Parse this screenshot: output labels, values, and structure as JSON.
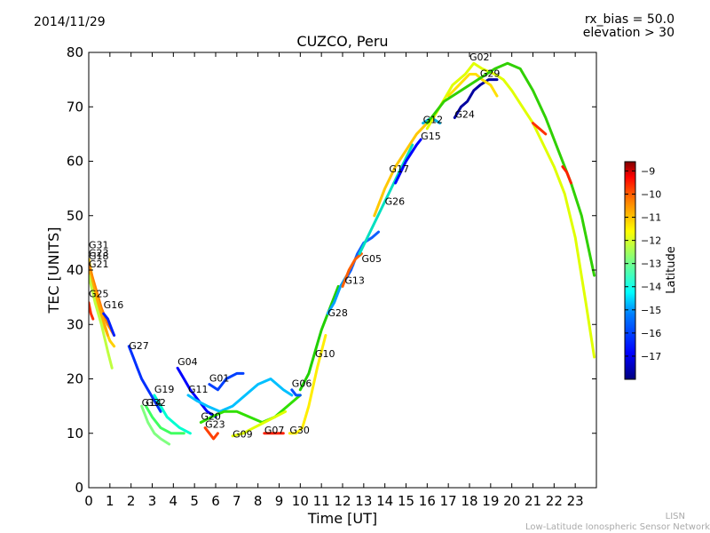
{
  "header": {
    "date": "2014/11/29",
    "rx_bias": "rx_bias = 50.0",
    "elevation": "elevation > 30"
  },
  "footer": {
    "line1": "LISN",
    "line2": "Low-Latitude Ionospheric Sensor Network"
  },
  "chart_data": {
    "type": "scatter",
    "title": "CUZCO, Peru",
    "xlabel": "Time [UT]",
    "ylabel": "TEC [UNITS]",
    "xlim": [
      0,
      24
    ],
    "ylim": [
      0,
      80
    ],
    "xticks": [
      "0",
      "1",
      "2",
      "3",
      "4",
      "5",
      "6",
      "7",
      "8",
      "9",
      "10",
      "11",
      "12",
      "13",
      "14",
      "15",
      "16",
      "17",
      "18",
      "19",
      "20",
      "21",
      "22",
      "23"
    ],
    "yticks": [
      "0",
      "10",
      "20",
      "30",
      "40",
      "50",
      "60",
      "70",
      "80"
    ],
    "colorbar": {
      "label": "Latitude",
      "range": [
        -18,
        -8.6
      ],
      "ticks": [
        "−9",
        "−10",
        "−11",
        "−12",
        "−13",
        "−14",
        "−15",
        "−16",
        "−17"
      ],
      "colormap": [
        "#00007f",
        "#0000ff",
        "#007fff",
        "#00ffff",
        "#7fff7f",
        "#ffff00",
        "#ff7f00",
        "#ff0000",
        "#7f0000"
      ]
    },
    "series": [
      {
        "name": "G31",
        "label_at": [
          0.0,
          44.0
        ],
        "color": "#ffd000",
        "points": [
          [
            0.0,
            42
          ],
          [
            0.2,
            38
          ],
          [
            0.4,
            34
          ],
          [
            0.6,
            31
          ],
          [
            0.8,
            29
          ],
          [
            1.0,
            27
          ],
          [
            1.2,
            26
          ]
        ]
      },
      {
        "name": "G23",
        "label_at": [
          0.0,
          42.5
        ],
        "color": "#ff8000",
        "points": [
          [
            0.0,
            41
          ],
          [
            0.3,
            37
          ],
          [
            0.6,
            33
          ],
          [
            0.9,
            30
          ],
          [
            1.2,
            28
          ]
        ]
      },
      {
        "name": "G18",
        "label_at": [
          0.0,
          42.0
        ],
        "color": "#ffaa00",
        "points": [
          [
            0.0,
            40
          ],
          [
            0.3,
            36
          ],
          [
            0.6,
            32
          ],
          [
            0.9,
            28
          ]
        ]
      },
      {
        "name": "G21",
        "label_at": [
          0.0,
          40.5
        ],
        "color": "#bfff3f",
        "points": [
          [
            0.0,
            39
          ],
          [
            0.3,
            34
          ],
          [
            0.6,
            30
          ],
          [
            0.9,
            25
          ],
          [
            1.1,
            22
          ]
        ]
      },
      {
        "name": "G25",
        "label_at": [
          0.0,
          35.0
        ],
        "color": "#ff3000",
        "points": [
          [
            0.0,
            34
          ],
          [
            0.1,
            32
          ],
          [
            0.2,
            31
          ]
        ]
      },
      {
        "name": "G16",
        "label_at": [
          0.7,
          33.0
        ],
        "color": "#0020ff",
        "points": [
          [
            0.7,
            32
          ],
          [
            0.9,
            31
          ],
          [
            1.1,
            29
          ],
          [
            1.2,
            28
          ]
        ]
      },
      {
        "name": "G27",
        "label_at": [
          1.9,
          25.5
        ],
        "color": "#0030ff",
        "points": [
          [
            1.9,
            26
          ],
          [
            2.1,
            24
          ],
          [
            2.3,
            22
          ],
          [
            2.5,
            20
          ],
          [
            2.8,
            18
          ],
          [
            3.1,
            16
          ],
          [
            3.4,
            14
          ]
        ]
      },
      {
        "name": "G04",
        "label_at": [
          4.2,
          22.5
        ],
        "color": "#0000ff",
        "points": [
          [
            4.2,
            22
          ],
          [
            4.5,
            20
          ],
          [
            4.8,
            18
          ],
          [
            5.2,
            16
          ],
          [
            5.6,
            14
          ],
          [
            6.0,
            13
          ]
        ]
      },
      {
        "name": "G01",
        "label_at": [
          5.7,
          19.5
        ],
        "color": "#0040ff",
        "points": [
          [
            5.7,
            19
          ],
          [
            6.1,
            18
          ],
          [
            6.5,
            20
          ],
          [
            7.0,
            21
          ],
          [
            7.3,
            21
          ]
        ]
      },
      {
        "name": "G19",
        "label_at": [
          3.1,
          17.5
        ],
        "color": "#00ffd0",
        "points": [
          [
            3.1,
            17
          ],
          [
            3.4,
            15
          ],
          [
            3.7,
            13
          ],
          [
            4.0,
            12
          ],
          [
            4.3,
            11
          ],
          [
            4.8,
            10
          ]
        ]
      },
      {
        "name": "G11",
        "label_at": [
          4.7,
          17.5
        ],
        "color": "#00c0ff",
        "points": [
          [
            4.7,
            17
          ],
          [
            5.1,
            16
          ],
          [
            5.6,
            15
          ],
          [
            6.2,
            14
          ],
          [
            6.8,
            15
          ],
          [
            7.4,
            17
          ],
          [
            8.0,
            19
          ],
          [
            8.6,
            20
          ],
          [
            9.2,
            18
          ],
          [
            9.6,
            17
          ]
        ]
      },
      {
        "name": "G14",
        "label_at": [
          2.5,
          15.0
        ],
        "color": "#80ff80",
        "points": [
          [
            2.5,
            15
          ],
          [
            2.8,
            12
          ],
          [
            3.1,
            10
          ],
          [
            3.4,
            9
          ],
          [
            3.8,
            8
          ]
        ]
      },
      {
        "name": "G32",
        "label_at": [
          2.7,
          15.0
        ],
        "color": "#40ff60",
        "points": [
          [
            2.7,
            15
          ],
          [
            3.0,
            13
          ],
          [
            3.4,
            11
          ],
          [
            3.9,
            10
          ],
          [
            4.5,
            10
          ]
        ]
      },
      {
        "name": "G20",
        "label_at": [
          5.3,
          12.5
        ],
        "color": "#30e000",
        "points": [
          [
            5.3,
            12
          ],
          [
            5.8,
            13
          ],
          [
            6.4,
            14
          ],
          [
            7.0,
            14
          ],
          [
            7.6,
            13
          ],
          [
            8.2,
            12
          ],
          [
            8.8,
            13
          ],
          [
            9.4,
            15
          ],
          [
            10.0,
            17
          ]
        ]
      },
      {
        "name": "G23b",
        "display": "G23",
        "label_at": [
          5.5,
          11.0
        ],
        "color": "#ff4000",
        "points": [
          [
            5.5,
            11
          ],
          [
            5.7,
            10
          ],
          [
            5.9,
            9
          ],
          [
            6.1,
            10
          ]
        ]
      },
      {
        "name": "G09",
        "label_at": [
          6.8,
          9.2
        ],
        "color": "#e0ff00",
        "points": [
          [
            6.8,
            9.5
          ],
          [
            7.3,
            10
          ],
          [
            7.8,
            11
          ],
          [
            8.3,
            12
          ],
          [
            8.8,
            13
          ],
          [
            9.3,
            14
          ]
        ]
      },
      {
        "name": "G07",
        "label_at": [
          8.3,
          10.0
        ],
        "color": "#ff2000",
        "points": [
          [
            8.3,
            10
          ],
          [
            8.6,
            10
          ],
          [
            8.9,
            10
          ],
          [
            9.2,
            10
          ]
        ]
      },
      {
        "name": "G30",
        "label_at": [
          9.5,
          10.0
        ],
        "color": "#ffee00",
        "points": [
          [
            9.5,
            10
          ],
          [
            9.8,
            10
          ],
          [
            10.1,
            11
          ],
          [
            10.4,
            15
          ],
          [
            10.8,
            22
          ],
          [
            11.2,
            28
          ]
        ]
      },
      {
        "name": "G06",
        "label_at": [
          9.6,
          18.5
        ],
        "color": "#0050ff",
        "points": [
          [
            9.6,
            18
          ],
          [
            9.8,
            17
          ],
          [
            10.0,
            17
          ]
        ]
      },
      {
        "name": "G10",
        "label_at": [
          10.7,
          24.0
        ],
        "color": "#20d000",
        "points": [
          [
            10.0,
            18
          ],
          [
            10.4,
            21
          ],
          [
            10.7,
            25
          ],
          [
            11.0,
            29
          ],
          [
            11.4,
            33
          ],
          [
            11.8,
            37
          ]
        ]
      },
      {
        "name": "G28",
        "label_at": [
          11.3,
          31.5
        ],
        "color": "#00a0ff",
        "points": [
          [
            11.3,
            32
          ],
          [
            11.6,
            34
          ],
          [
            11.9,
            37
          ],
          [
            12.2,
            39
          ],
          [
            12.5,
            41
          ]
        ]
      },
      {
        "name": "G13",
        "label_at": [
          12.1,
          37.5
        ],
        "color": "#1060ff",
        "points": [
          [
            12.1,
            38
          ],
          [
            12.4,
            40
          ],
          [
            12.7,
            43
          ],
          [
            13.0,
            45
          ],
          [
            13.4,
            46
          ],
          [
            13.7,
            47
          ]
        ]
      },
      {
        "name": "G05",
        "label_at": [
          12.9,
          41.5
        ],
        "color": "#ff6000",
        "points": [
          [
            12.0,
            37
          ],
          [
            12.3,
            40
          ],
          [
            12.6,
            42
          ],
          [
            12.9,
            43
          ]
        ]
      },
      {
        "name": "G26",
        "label_at": [
          14.0,
          52.0
        ],
        "color": "#00e0c0",
        "points": [
          [
            12.8,
            43
          ],
          [
            13.3,
            47
          ],
          [
            13.8,
            51
          ],
          [
            14.3,
            55
          ],
          [
            14.8,
            59
          ],
          [
            15.3,
            63
          ]
        ]
      },
      {
        "name": "G17",
        "label_at": [
          14.2,
          58.0
        ],
        "color": "#ffc800",
        "points": [
          [
            13.5,
            50
          ],
          [
            14.0,
            55
          ],
          [
            14.5,
            59
          ],
          [
            15.0,
            62
          ],
          [
            15.5,
            65
          ],
          [
            16.0,
            67
          ]
        ]
      },
      {
        "name": "G15",
        "label_at": [
          15.7,
          64.0
        ],
        "color": "#0000ff",
        "points": [
          [
            14.5,
            56
          ],
          [
            15.0,
            60
          ],
          [
            15.5,
            63
          ],
          [
            15.7,
            64
          ]
        ]
      },
      {
        "name": "G12",
        "label_at": [
          15.8,
          67.0
        ],
        "color": "#00b0e0",
        "points": [
          [
            15.8,
            67
          ],
          [
            16.2,
            68
          ],
          [
            16.6,
            67
          ]
        ]
      },
      {
        "name": "G24",
        "label_at": [
          17.3,
          68.0
        ],
        "color": "#0000a0",
        "points": [
          [
            17.3,
            68
          ],
          [
            17.6,
            70
          ],
          [
            17.9,
            71
          ],
          [
            18.2,
            73
          ],
          [
            18.5,
            74
          ],
          [
            18.9,
            75
          ],
          [
            19.3,
            75
          ]
        ]
      },
      {
        "name": "G02",
        "label_at": [
          18.0,
          78.5
        ],
        "color": "#e0ff00",
        "points": [
          [
            16.0,
            66
          ],
          [
            16.6,
            70
          ],
          [
            17.2,
            74
          ],
          [
            17.8,
            76
          ],
          [
            18.2,
            78
          ],
          [
            18.6,
            77
          ],
          [
            19.2,
            76
          ],
          [
            19.6,
            75
          ],
          [
            20.0,
            73
          ],
          [
            20.5,
            70
          ],
          [
            21.0,
            67
          ],
          [
            21.5,
            63
          ],
          [
            22.0,
            59
          ],
          [
            22.5,
            54
          ],
          [
            23.0,
            46
          ],
          [
            23.5,
            34
          ],
          [
            23.9,
            24
          ]
        ]
      },
      {
        "name": "G29",
        "label_at": [
          18.5,
          75.5
        ],
        "color": "#ffe000",
        "points": [
          [
            17.0,
            72
          ],
          [
            17.5,
            74
          ],
          [
            18.0,
            76
          ],
          [
            18.3,
            76
          ],
          [
            18.6,
            75
          ],
          [
            19.0,
            74
          ],
          [
            19.3,
            72
          ]
        ]
      },
      {
        "name": "G02b",
        "display": "",
        "label_at": null,
        "color": "#30d000",
        "points": [
          [
            16.0,
            67
          ],
          [
            16.8,
            71
          ],
          [
            17.6,
            73
          ],
          [
            18.4,
            75
          ],
          [
            19.2,
            77
          ],
          [
            19.8,
            78
          ],
          [
            20.4,
            77
          ],
          [
            21.0,
            73
          ],
          [
            21.6,
            68
          ],
          [
            22.2,
            62
          ],
          [
            22.8,
            56
          ],
          [
            23.3,
            50
          ],
          [
            23.9,
            39
          ]
        ]
      },
      {
        "name": "G02c",
        "display": "",
        "label_at": null,
        "color": "#ff2000",
        "points": [
          [
            22.4,
            59
          ],
          [
            22.6,
            58
          ],
          [
            22.8,
            56
          ]
        ]
      },
      {
        "name": "G02d",
        "display": "",
        "label_at": null,
        "color": "#ff3000",
        "points": [
          [
            21.0,
            67
          ],
          [
            21.3,
            66
          ],
          [
            21.6,
            65
          ]
        ]
      }
    ]
  }
}
